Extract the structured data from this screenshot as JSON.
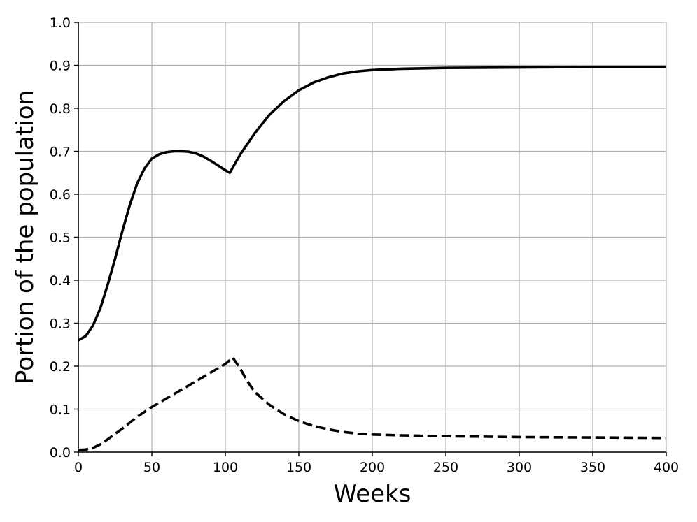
{
  "chart_data": {
    "type": "line",
    "title": "",
    "xlabel": "Weeks",
    "ylabel": "Portion of the population",
    "xlim": [
      0,
      400
    ],
    "ylim": [
      0,
      1.0
    ],
    "grid": true,
    "x_ticks": [
      "0",
      "50",
      "100",
      "150",
      "200",
      "250",
      "300",
      "350",
      "400"
    ],
    "y_ticks": [
      "0.0",
      "0.1",
      "0.2",
      "0.3",
      "0.4",
      "0.5",
      "0.6",
      "0.7",
      "0.8",
      "0.9",
      "1.0"
    ],
    "series": [
      {
        "style": "solid",
        "color": "#000000",
        "x": [
          0,
          5,
          10,
          15,
          20,
          25,
          30,
          35,
          40,
          45,
          50,
          55,
          60,
          65,
          70,
          75,
          80,
          85,
          90,
          95,
          100,
          103,
          105,
          110,
          120,
          130,
          140,
          150,
          160,
          170,
          180,
          190,
          200,
          220,
          250,
          300,
          350,
          400
        ],
        "y": [
          0.26,
          0.27,
          0.295,
          0.335,
          0.39,
          0.45,
          0.515,
          0.575,
          0.625,
          0.66,
          0.683,
          0.693,
          0.698,
          0.7,
          0.7,
          0.699,
          0.695,
          0.688,
          0.678,
          0.667,
          0.656,
          0.65,
          0.662,
          0.692,
          0.742,
          0.785,
          0.817,
          0.842,
          0.86,
          0.872,
          0.881,
          0.886,
          0.889,
          0.892,
          0.894,
          0.895,
          0.896,
          0.896
        ]
      },
      {
        "style": "dashed",
        "color": "#000000",
        "x": [
          0,
          5,
          10,
          15,
          20,
          30,
          40,
          50,
          60,
          70,
          80,
          90,
          100,
          105,
          110,
          115,
          120,
          130,
          140,
          150,
          160,
          170,
          180,
          190,
          200,
          220,
          250,
          300,
          350,
          400
        ],
        "y": [
          0.005,
          0.006,
          0.01,
          0.018,
          0.03,
          0.055,
          0.082,
          0.105,
          0.125,
          0.145,
          0.165,
          0.185,
          0.205,
          0.22,
          0.195,
          0.165,
          0.14,
          0.11,
          0.088,
          0.072,
          0.061,
          0.053,
          0.047,
          0.043,
          0.041,
          0.039,
          0.037,
          0.035,
          0.034,
          0.033
        ]
      }
    ]
  }
}
